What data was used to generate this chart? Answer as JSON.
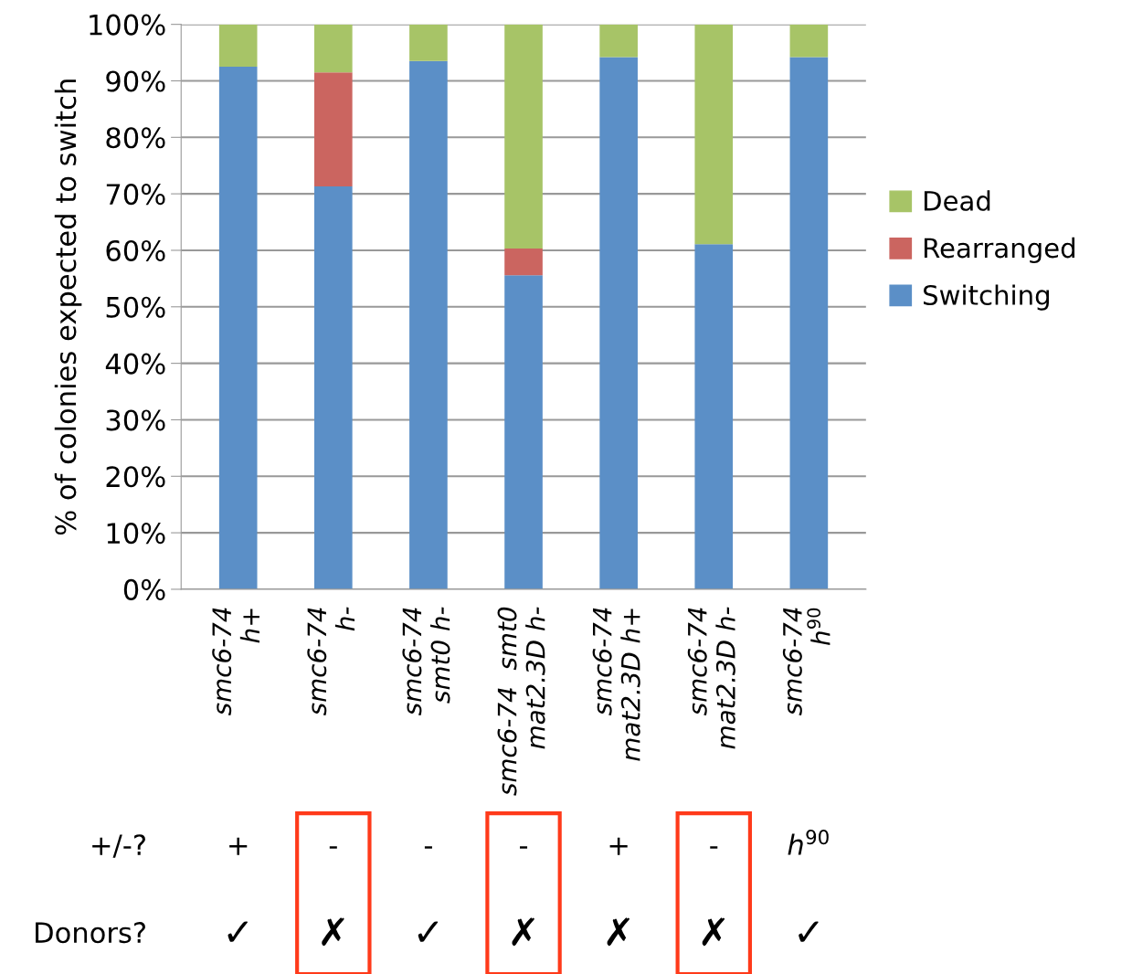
{
  "chart_data": {
    "type": "bar",
    "stacked": true,
    "ylabel": "% of colonies expected to switch",
    "categories": [
      "smc6-74\nh+",
      "smc6-74\nh-",
      "smc6-74\nsmt0 h-",
      "smc6-74  smt0\nmat2.3D h-",
      "smc6-74\nmat2.3D h+",
      "smc6-74\nmat2.3D h-",
      "smc6-74\nh$^{90}$"
    ],
    "series": [
      {
        "name": "Switching",
        "color": "#5b8fc7",
        "values": [
          92.5,
          71.3,
          93.5,
          55.6,
          94.2,
          61.1,
          94.2
        ]
      },
      {
        "name": "Rearranged",
        "color": "#cb6560",
        "values": [
          0,
          20.2,
          0,
          4.7,
          0,
          0,
          0
        ]
      },
      {
        "name": "Dead",
        "color": "#a7c467",
        "values": [
          7.5,
          8.5,
          6.5,
          39.7,
          5.8,
          38.9,
          5.8
        ]
      }
    ],
    "ylim": [
      0,
      100
    ],
    "yticks": [
      {
        "value": 0,
        "label": "0%"
      },
      {
        "value": 10,
        "label": "10%"
      },
      {
        "value": 20,
        "label": "20%"
      },
      {
        "value": 30,
        "label": "30%"
      },
      {
        "value": 40,
        "label": "40%"
      },
      {
        "value": 50,
        "label": "50%"
      },
      {
        "value": 60,
        "label": "60%"
      },
      {
        "value": 70,
        "label": "70%"
      },
      {
        "value": 80,
        "label": "80%"
      },
      {
        "value": 90,
        "label": "90%"
      },
      {
        "value": 100,
        "label": "100%"
      }
    ],
    "grid": "y",
    "legend": "right",
    "annotations": [
      "+/-?",
      "+",
      "-",
      "-",
      "-",
      "+",
      "-",
      "h$^{90}$",
      "Donors?",
      "✓",
      "✗",
      "✓",
      "✗",
      "✗",
      "✗",
      "✓"
    ]
  }
}
